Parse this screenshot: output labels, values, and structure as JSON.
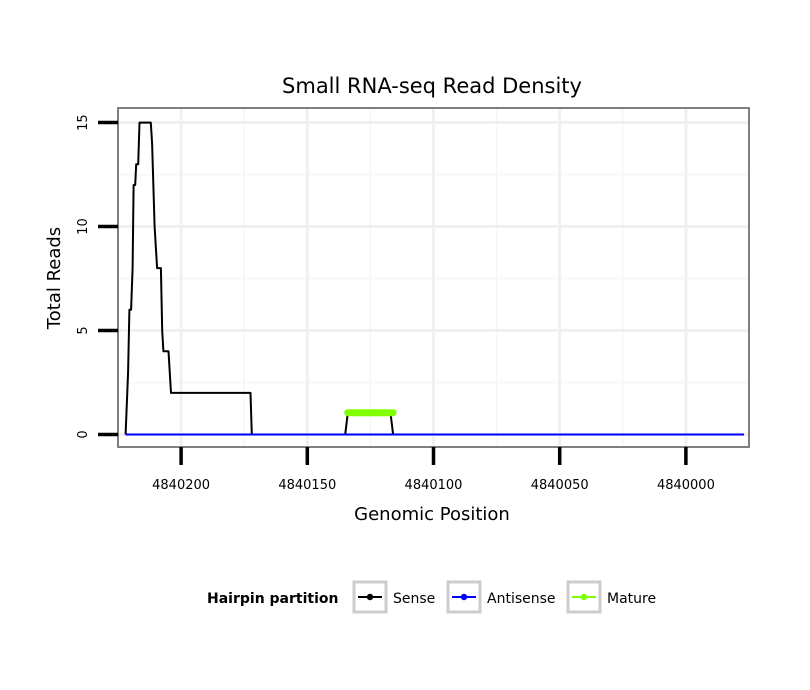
{
  "chart_data": {
    "type": "line",
    "title": "Small RNA-seq Read Density",
    "xlabel": "Genomic Position",
    "ylabel": "Total Reads",
    "x_reversed": true,
    "xlim": [
      4840225,
      4839975
    ],
    "ylim": [
      -0.6,
      15.7
    ],
    "x_ticks": [
      4840200,
      4840150,
      4840100,
      4840050,
      4840000
    ],
    "x_tick_labels": [
      "4840200",
      "4840150",
      "4840100",
      "4840050",
      "4840000"
    ],
    "y_ticks": [
      0,
      5,
      10,
      15
    ],
    "y_tick_labels": [
      "0",
      "5",
      "10",
      "15"
    ],
    "grid": true,
    "legend": {
      "title": "Hairpin partition",
      "position": "bottom",
      "entries": [
        {
          "name": "Sense",
          "color": "#000000"
        },
        {
          "name": "Antisense",
          "color": "#0000ff"
        },
        {
          "name": "Mature",
          "color": "#7fff00"
        }
      ]
    },
    "series": [
      {
        "name": "Sense",
        "color": "#000000",
        "points": [
          [
            4840222,
            0
          ],
          [
            4840221,
            3
          ],
          [
            4840220.5,
            6
          ],
          [
            4840219.8,
            6
          ],
          [
            4840219.2,
            8
          ],
          [
            4840218.8,
            12
          ],
          [
            4840218.2,
            12
          ],
          [
            4840217.8,
            13
          ],
          [
            4840217,
            13
          ],
          [
            4840216.5,
            15
          ],
          [
            4840212,
            15
          ],
          [
            4840211.5,
            14
          ],
          [
            4840210.5,
            10
          ],
          [
            4840209.5,
            8
          ],
          [
            4840208,
            8
          ],
          [
            4840207.5,
            5
          ],
          [
            4840207,
            4
          ],
          [
            4840205,
            4
          ],
          [
            4840204,
            2
          ],
          [
            4840198.5,
            2
          ],
          [
            4840197.5,
            2
          ],
          [
            4840196,
            2
          ],
          [
            4840195,
            2
          ],
          [
            4840194,
            2
          ],
          [
            4840193,
            2
          ],
          [
            4840192.5,
            2
          ],
          [
            4840191.5,
            2
          ],
          [
            4840190.5,
            2
          ],
          [
            4840190,
            2
          ],
          [
            4840189,
            2
          ],
          [
            4840188.5,
            2
          ],
          [
            4840188,
            2
          ],
          [
            4840187.5,
            2
          ],
          [
            4840187,
            2
          ],
          [
            4840186.5,
            2
          ],
          [
            4840186,
            2
          ],
          [
            4840185.5,
            2
          ],
          [
            4840185,
            2
          ],
          [
            4840184.5,
            2
          ],
          [
            4840184,
            2
          ],
          [
            4840183.5,
            2
          ],
          [
            4840183,
            2
          ],
          [
            4840182.5,
            2
          ],
          [
            4840182,
            2
          ],
          [
            4840181.5,
            2
          ],
          [
            4840181,
            2
          ],
          [
            4840180.5,
            2
          ],
          [
            4840180,
            2
          ],
          [
            4840179.5,
            2
          ],
          [
            4840179,
            2
          ],
          [
            4840178.5,
            2
          ],
          [
            4840178,
            2
          ],
          [
            4840177.5,
            2
          ],
          [
            4840177,
            2
          ],
          [
            4840176.5,
            2
          ],
          [
            4840176,
            2
          ],
          [
            4840175.5,
            2
          ],
          [
            4840175,
            2
          ],
          [
            4840174.5,
            2
          ],
          [
            4840174,
            2
          ],
          [
            4840173.5,
            2
          ],
          [
            4840173,
            2
          ],
          [
            4840172.5,
            2
          ],
          [
            4840172,
            0
          ],
          [
            4840135,
            0
          ],
          [
            4840134,
            1
          ],
          [
            4840117,
            1
          ],
          [
            4840116,
            0
          ],
          [
            4839977,
            0
          ]
        ]
      },
      {
        "name": "Antisense",
        "color": "#0000ff",
        "points": [
          [
            4840222,
            0
          ],
          [
            4840172,
            0
          ],
          [
            4840135,
            0
          ],
          [
            4840116,
            0
          ],
          [
            4839977,
            0
          ]
        ]
      },
      {
        "name": "Mature",
        "color": "#7fff00",
        "points": [
          [
            4840134,
            1.05
          ],
          [
            4840116,
            1.05
          ]
        ]
      }
    ]
  }
}
